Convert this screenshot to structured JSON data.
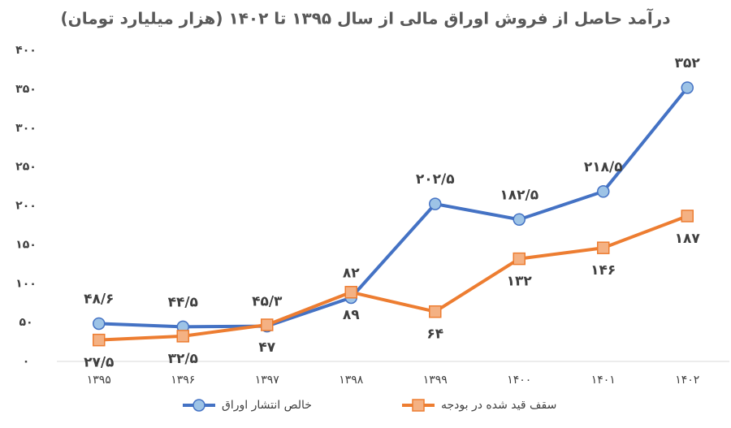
{
  "chart_data": {
    "type": "line",
    "title": "درآمد حاصل از فروش اوراق مالی از سال ۱۳۹۵ تا ۱۴۰۲ (هزار میلیارد تومان)",
    "categories": [
      "۱۳۹۵",
      "۱۳۹۶",
      "۱۳۹۷",
      "۱۳۹۸",
      "۱۳۹۹",
      "۱۴۰۰",
      "۱۴۰۱",
      "۱۴۰۲"
    ],
    "series": [
      {
        "name": "خالص انتشار اوراق",
        "color": "#4472c4",
        "marker": "circle",
        "values": [
          48.6,
          44.5,
          45.3,
          82,
          202.5,
          182.5,
          218.5,
          352
        ],
        "value_labels": [
          "۴۸/۶",
          "۴۴/۵",
          "۴۵/۳",
          "۸۲",
          "۲۰۲/۵",
          "۱۸۲/۵",
          "۲۱۸/۵",
          "۳۵۲"
        ]
      },
      {
        "name": "سقف قید شده در بودجه",
        "color": "#ed7d31",
        "marker": "square",
        "values": [
          27.5,
          32.5,
          47,
          89,
          64,
          132,
          146,
          187
        ],
        "value_labels": [
          "۲۷/۵",
          "۳۲/۵",
          "۴۷",
          "۸۹",
          "۶۴",
          "۱۳۲",
          "۱۴۶",
          "۱۸۷"
        ]
      }
    ],
    "ylim": [
      0,
      400
    ],
    "yticks": [
      {
        "value": 0,
        "label": "۰"
      },
      {
        "value": 50,
        "label": "۵۰"
      },
      {
        "value": 100,
        "label": "۱۰۰"
      },
      {
        "value": 150,
        "label": "۱۵۰"
      },
      {
        "value": 200,
        "label": "۲۰۰"
      },
      {
        "value": 250,
        "label": "۲۵۰"
      },
      {
        "value": 300,
        "label": "۳۰۰"
      },
      {
        "value": 350,
        "label": "۳۵۰"
      },
      {
        "value": 400,
        "label": "۴۰۰"
      }
    ],
    "grid": false,
    "legend": "bottom"
  }
}
